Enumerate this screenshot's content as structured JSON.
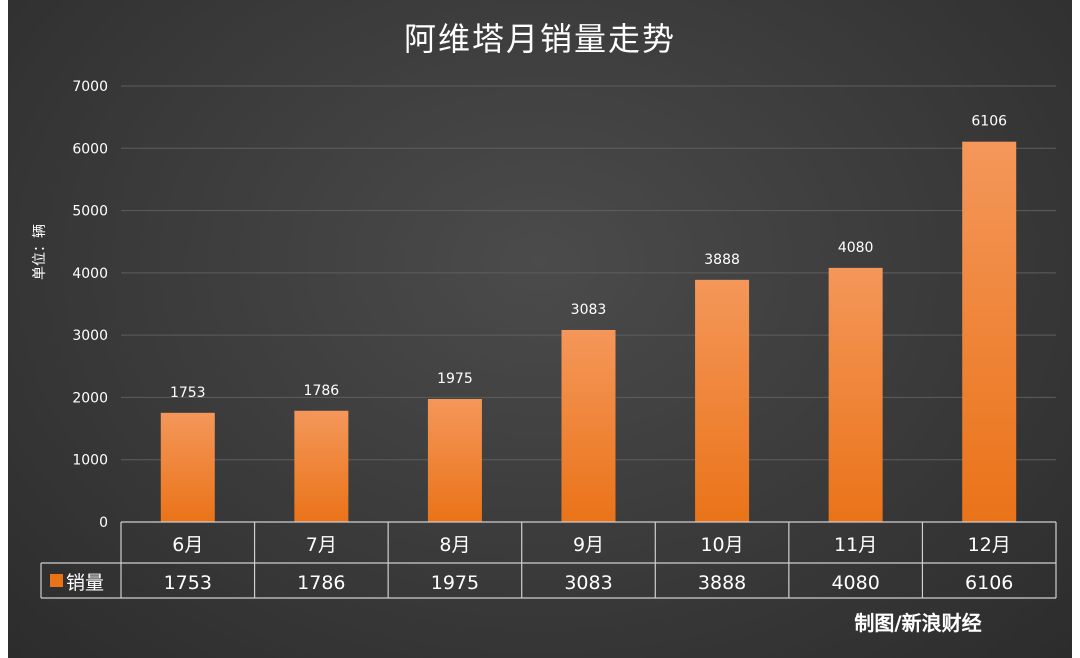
{
  "chart_data": {
    "type": "bar",
    "title": "阿维塔月销量走势",
    "ylabel": "单位：辆",
    "ylim": [
      0,
      7000
    ],
    "yticks": [
      0,
      1000,
      2000,
      3000,
      4000,
      5000,
      6000,
      7000
    ],
    "grid": true,
    "categories": [
      "6月",
      "7月",
      "8月",
      "9月",
      "10月",
      "11月",
      "12月"
    ],
    "series": [
      {
        "name": "销量",
        "values": [
          1753,
          1786,
          1975,
          3083,
          3888,
          4080,
          6106
        ]
      }
    ],
    "data_table": true,
    "colors": {
      "bar_top": "#f4975a",
      "bar_bottom": "#ea7318",
      "background": "#3d3d3d",
      "text": "#ffffff"
    }
  },
  "credit": "制图/新浪财经"
}
